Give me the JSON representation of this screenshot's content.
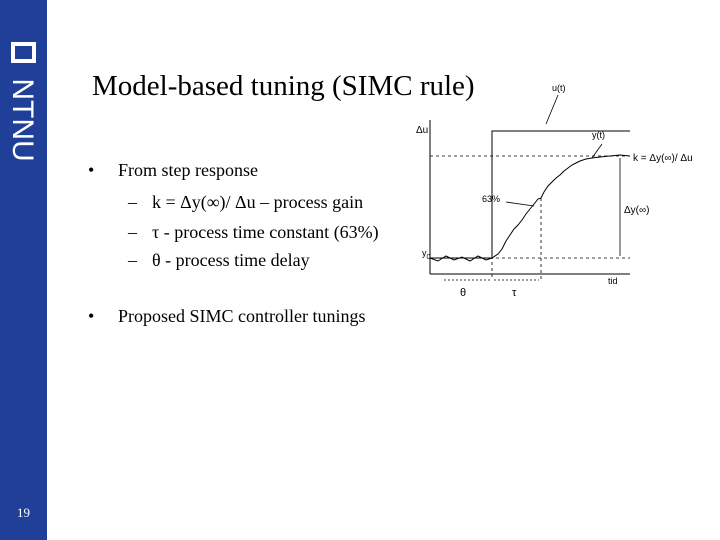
{
  "slide": {
    "title": "Model-based tuning (SIMC rule)",
    "number": "19",
    "logo_text": "NTNU",
    "colors": {
      "sidebar": "#1f3f99",
      "text": "#000000"
    }
  },
  "bullets": [
    {
      "text": "From step response",
      "sub": [
        "k = Δy(∞)/ Δu – process gain",
        "τ - process time constant (63%)",
        "θ - process time delay"
      ]
    },
    {
      "text": "Proposed SIMC controller tunings"
    }
  ],
  "figure": {
    "labels": {
      "input": "u(t)",
      "output": "y(t)",
      "delta_u": "Δu",
      "gain": "k = Δy(∞)/ Δu",
      "delta_y": "Δy(∞)",
      "pct": "63%",
      "y0": "y",
      "y0_sub": "0",
      "theta": "θ",
      "tau": "τ",
      "time": "tid"
    }
  }
}
